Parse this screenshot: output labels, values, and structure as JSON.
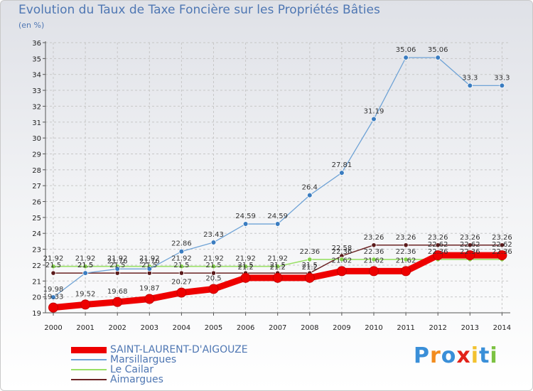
{
  "chart_data": {
    "type": "line",
    "title": "Evolution du Taux de Taxe Foncière sur les Propriétés Bâties",
    "unit_note": "(en %)",
    "categories": [
      "2000",
      "2001",
      "2002",
      "2003",
      "2004",
      "2005",
      "2006",
      "2007",
      "2008",
      "2009",
      "2010",
      "2011",
      "2012",
      "2013",
      "2014"
    ],
    "ylim": [
      19,
      36
    ],
    "yticks": [
      19,
      20,
      21,
      22,
      23,
      24,
      25,
      26,
      27,
      28,
      29,
      30,
      31,
      32,
      33,
      34,
      35,
      36
    ],
    "grid": true,
    "legend_placement": "bottom-left",
    "series": [
      {
        "name": "SAINT-LAURENT-D'AIGOUZE",
        "color": "#ee0000",
        "values": [
          19.33,
          19.52,
          19.68,
          19.87,
          20.27,
          20.5,
          21.2,
          21.2,
          21.2,
          21.62,
          21.62,
          21.62,
          22.62,
          22.62,
          22.62
        ],
        "labels": [
          "19.33",
          "19.52",
          "19.68",
          "19.87",
          "20.27",
          "20.5",
          "21.2",
          "21.2",
          "21.2",
          "21.62",
          "21.62",
          "21.62",
          "22.62",
          "22.62",
          "22.62"
        ]
      },
      {
        "name": "Marsillargues",
        "color": "#6fa3d6",
        "values": [
          19.98,
          21.5,
          21.76,
          21.76,
          22.86,
          23.43,
          24.59,
          24.59,
          26.4,
          27.81,
          31.19,
          35.06,
          35.06,
          33.3,
          33.3
        ],
        "labels": [
          "19.98",
          "21.5",
          "21.76",
          "21.76",
          "22.86",
          "23.43",
          "24.59",
          "24.59",
          "26.4",
          "27.81",
          "31.19",
          "35.06",
          "35.06",
          "33.3",
          "33.3"
        ]
      },
      {
        "name": "Le Cailar",
        "color": "#99e066",
        "values": [
          21.92,
          21.92,
          21.92,
          21.92,
          21.92,
          21.92,
          21.92,
          21.92,
          22.36,
          22.36,
          22.36,
          22.36,
          22.36,
          22.36,
          22.36
        ],
        "labels": [
          "21.92",
          "21.92",
          "21.92",
          "21.92",
          "21.92",
          "21.92",
          "21.92",
          "21.92",
          "22.36",
          "22.36",
          "22.36",
          "22.36",
          "22.36",
          "22.36",
          "22.36"
        ]
      },
      {
        "name": "Aimargues",
        "color": "#6b2424",
        "values": [
          21.5,
          21.5,
          21.5,
          21.5,
          21.5,
          21.5,
          21.5,
          21.5,
          21.5,
          22.58,
          23.26,
          23.26,
          23.26,
          23.26,
          23.26
        ],
        "labels": [
          "21.5",
          "21.5",
          "21.5",
          "21.5",
          "21.5",
          "21.5",
          "21.5",
          "21.5",
          "21.5",
          "22.58",
          "23.26",
          "23.26",
          "23.26",
          "23.26",
          "23.26"
        ]
      }
    ]
  },
  "brand": {
    "text": "Proxiti",
    "letter_colors": [
      "#3a8fd8",
      "#f28c1e",
      "#3a8fd8",
      "#e2231a",
      "#f2c230",
      "#3a8fd8",
      "#7cc242"
    ]
  }
}
